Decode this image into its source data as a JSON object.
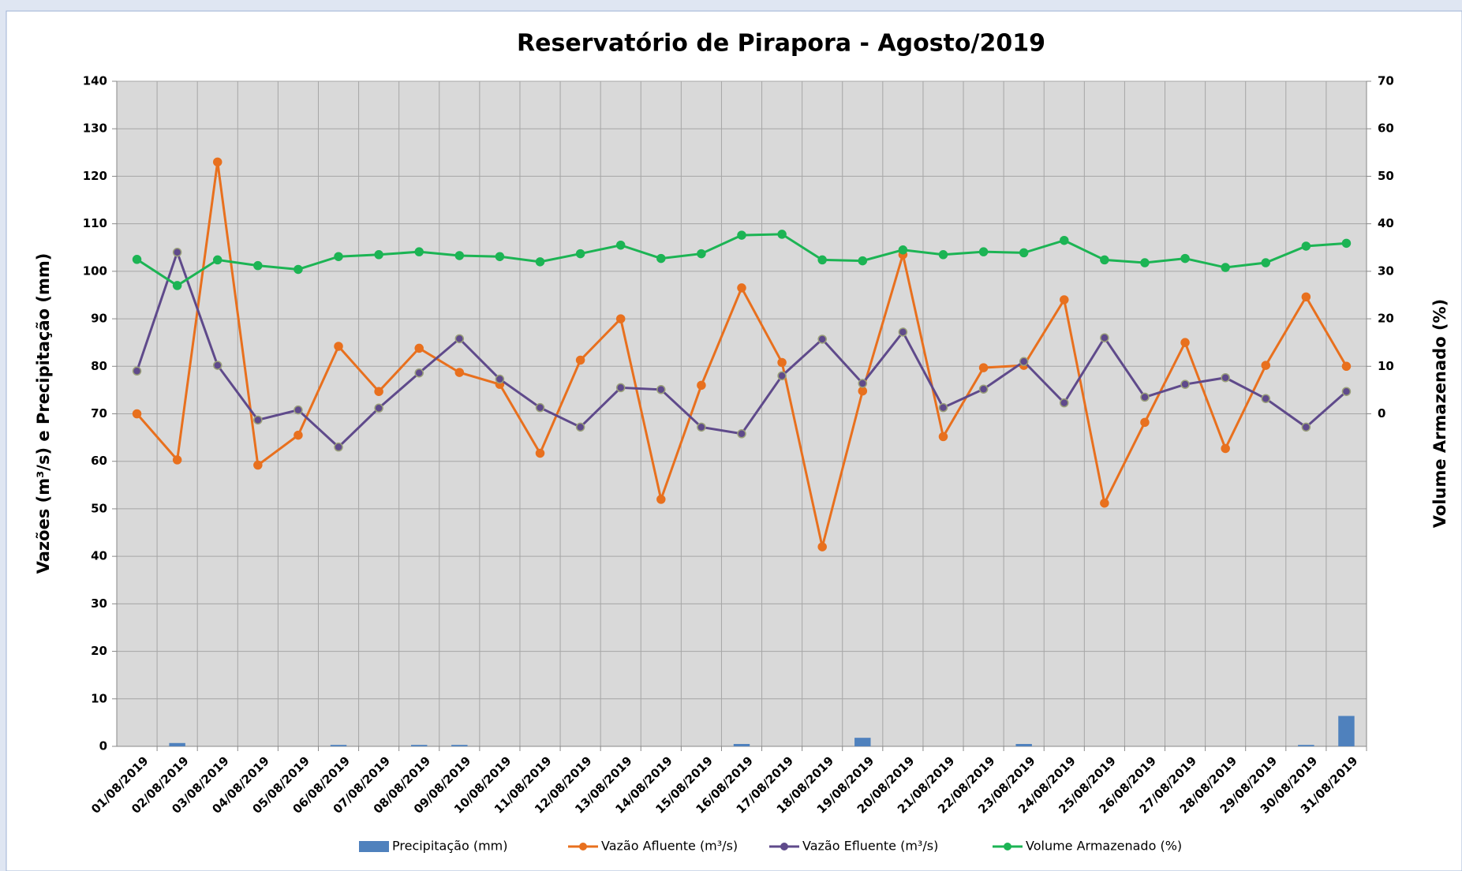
{
  "chart_data": {
    "type": "line",
    "title": "Reservatório de Pirapora - Agosto/2019",
    "y_label": "Vazões (m³/s) e Precipitação (mm)",
    "y2_label": "Volume Armazenado (%)",
    "categories": [
      "01/08/2019",
      "02/08/2019",
      "03/08/2019",
      "04/08/2019",
      "05/08/2019",
      "06/08/2019",
      "07/08/2019",
      "08/08/2019",
      "09/08/2019",
      "10/08/2019",
      "11/08/2019",
      "12/08/2019",
      "13/08/2019",
      "14/08/2019",
      "15/08/2019",
      "16/08/2019",
      "17/08/2019",
      "18/08/2019",
      "19/08/2019",
      "20/08/2019",
      "21/08/2019",
      "22/08/2019",
      "23/08/2019",
      "24/08/2019",
      "25/08/2019",
      "26/08/2019",
      "27/08/2019",
      "28/08/2019",
      "29/08/2019",
      "30/08/2019",
      "31/08/2019"
    ],
    "series": [
      {
        "name": "Precipitação (mm)",
        "type": "bar",
        "color": "#4f81bd",
        "values": [
          0,
          0.7,
          0,
          0,
          0,
          0.3,
          0,
          0.3,
          0.3,
          0,
          0,
          0,
          0,
          0,
          0,
          0.5,
          0,
          0,
          1.8,
          0,
          0,
          0,
          0.5,
          0,
          0,
          0,
          0,
          0,
          0,
          0.3,
          6.4
        ]
      },
      {
        "name": "Vazão Afluente (m³/s)",
        "type": "line",
        "color": "#e8701e",
        "values": [
          70,
          60.3,
          123,
          59.2,
          65.5,
          84.2,
          74.7,
          83.8,
          78.7,
          76.2,
          61.7,
          81.3,
          90,
          52,
          76,
          96.5,
          80.8,
          42,
          74.8,
          103.5,
          65.2,
          79.7,
          80.2,
          94,
          51.2,
          68.2,
          85,
          62.7,
          80.2,
          94.6,
          80
        ]
      },
      {
        "name": "Vazão Efluente (m³/s)",
        "type": "line",
        "color": "#5f4a8b",
        "values": [
          79,
          104,
          80.2,
          68.7,
          70.8,
          63,
          71.2,
          78.6,
          85.8,
          77.3,
          71.3,
          67.2,
          75.5,
          75.1,
          67.2,
          65.8,
          78,
          85.7,
          76.4,
          87.2,
          71.3,
          75.2,
          81,
          72.3,
          86,
          73.5,
          76.2,
          77.6,
          73.2,
          67.2,
          74.7
        ]
      },
      {
        "name": "Volume Armazenado (%)",
        "type": "line",
        "color": "#1cb454",
        "axis": "y2",
        "values": [
          32.5,
          27,
          32.4,
          31.2,
          30.4,
          33.1,
          33.5,
          34.1,
          33.3,
          33.1,
          32,
          33.7,
          35.5,
          32.7,
          33.7,
          37.6,
          37.8,
          32.4,
          32.2,
          34.5,
          33.5,
          34.1,
          33.9,
          36.5,
          32.4,
          31.8,
          32.7,
          30.8,
          31.8,
          35.3,
          35.9
        ]
      }
    ],
    "ylim": [
      0,
      140
    ],
    "yticks": [
      0,
      10,
      20,
      30,
      40,
      50,
      60,
      70,
      80,
      90,
      100,
      110,
      120,
      130,
      140
    ],
    "y2lim": [
      -70,
      70
    ],
    "y2ticks": [
      0,
      10,
      20,
      30,
      40,
      50,
      60,
      70
    ],
    "grid": true,
    "legend": "bottom"
  }
}
